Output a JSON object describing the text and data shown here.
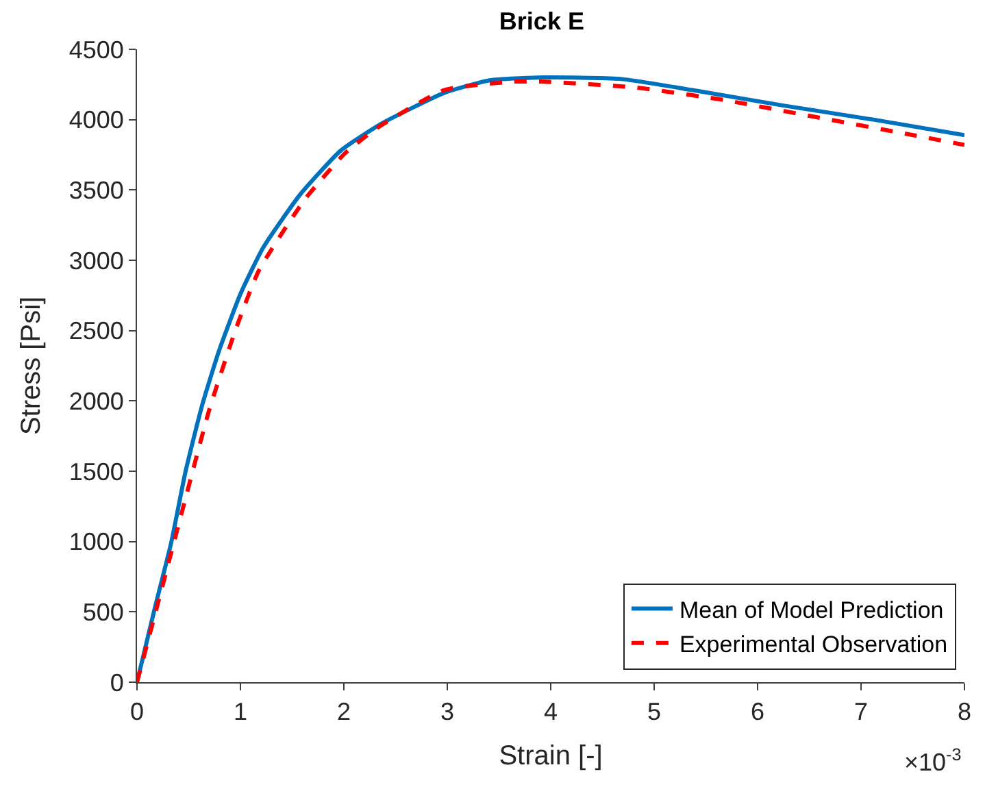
{
  "chart_data": {
    "type": "line",
    "title": "Brick E",
    "xlabel": "Strain [-]",
    "ylabel": "Stress [Psi]",
    "xlim": [
      0,
      8
    ],
    "xticks": [
      0,
      1,
      2,
      3,
      4,
      5,
      6,
      7,
      8
    ],
    "ylim": [
      0,
      4500
    ],
    "yticks": [
      0,
      500,
      1000,
      1500,
      2000,
      2500,
      3000,
      3500,
      4000,
      4500
    ],
    "annotations": [
      "×10$^{-3}$"
    ],
    "legend": "bottom right",
    "marker": "none",
    "series": [
      {
        "name": "Mean of Model Prediction",
        "color": "#0072bd",
        "line_style": "solid",
        "x": [
          0,
          0.17,
          0.33,
          0.47,
          0.63,
          0.79,
          1.0,
          1.22,
          1.58,
          1.97,
          2.36,
          2.97,
          3.41,
          3.92,
          4.67,
          5.37,
          6.25,
          7.12,
          8
        ],
        "values": [
          0,
          520,
          990,
          1500,
          1970,
          2350,
          2760,
          3090,
          3470,
          3780,
          3970,
          4190,
          4280,
          4300,
          4290,
          4210,
          4100,
          4000,
          3890
        ]
      },
      {
        "name": "Experimental Observation",
        "color": "#ff0000",
        "line_style": "dashed",
        "x": [
          0,
          0.17,
          0.47,
          0.7,
          0.96,
          1.18,
          1.62,
          2.01,
          2.32,
          2.97,
          3.63,
          3.92,
          4.8,
          5.67,
          6.55,
          7.43,
          8
        ],
        "values": [
          0,
          470,
          1310,
          1940,
          2520,
          2930,
          3430,
          3760,
          3940,
          4210,
          4270,
          4270,
          4230,
          4140,
          4020,
          3900,
          3820
        ]
      }
    ]
  }
}
